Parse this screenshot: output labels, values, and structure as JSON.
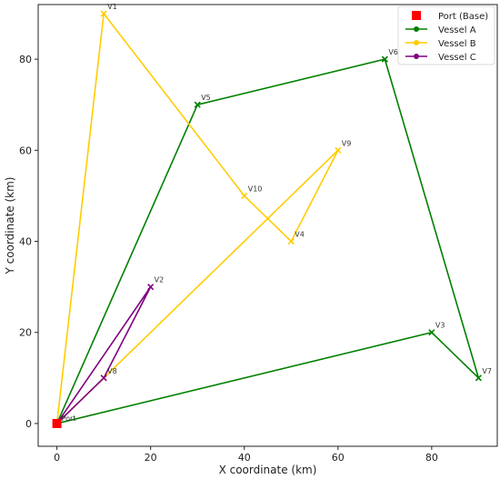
{
  "chart_data": {
    "type": "line",
    "xlabel": "X coordinate (km)",
    "ylabel": "Y coordinate (km)",
    "xlim": [
      -4,
      94
    ],
    "ylim": [
      -5,
      92
    ],
    "xticks": [
      "0",
      "20",
      "40",
      "60",
      "80"
    ],
    "yticks": [
      "0",
      "20",
      "40",
      "60",
      "80"
    ],
    "grid": false,
    "legend_position": "top-right",
    "base": {
      "name": "Port (Base)",
      "label": "Port",
      "x": 0,
      "y": 0,
      "color": "#ff0000"
    },
    "points": [
      {
        "label": "V1",
        "x": 10,
        "y": 90
      },
      {
        "label": "V2",
        "x": 20,
        "y": 30
      },
      {
        "label": "V3",
        "x": 80,
        "y": 20
      },
      {
        "label": "V4",
        "x": 50,
        "y": 40
      },
      {
        "label": "V5",
        "x": 30,
        "y": 70
      },
      {
        "label": "V6",
        "x": 70,
        "y": 80
      },
      {
        "label": "V7",
        "x": 90,
        "y": 10
      },
      {
        "label": "V8",
        "x": 10,
        "y": 10
      },
      {
        "label": "V9",
        "x": 60,
        "y": 60
      },
      {
        "label": "V10",
        "x": 40,
        "y": 50
      }
    ],
    "series": [
      {
        "name": "Vessel A",
        "color": "#008000",
        "route": [
          "Port",
          "V5",
          "V6",
          "V7",
          "V3",
          "Port"
        ]
      },
      {
        "name": "Vessel B",
        "color": "#ffcc00",
        "route": [
          "Port",
          "V1",
          "V10",
          "V4",
          "V9",
          "V8",
          "Port"
        ]
      },
      {
        "name": "Vessel C",
        "color": "#800080",
        "route": [
          "Port",
          "V2",
          "V8",
          "Port"
        ]
      }
    ]
  }
}
